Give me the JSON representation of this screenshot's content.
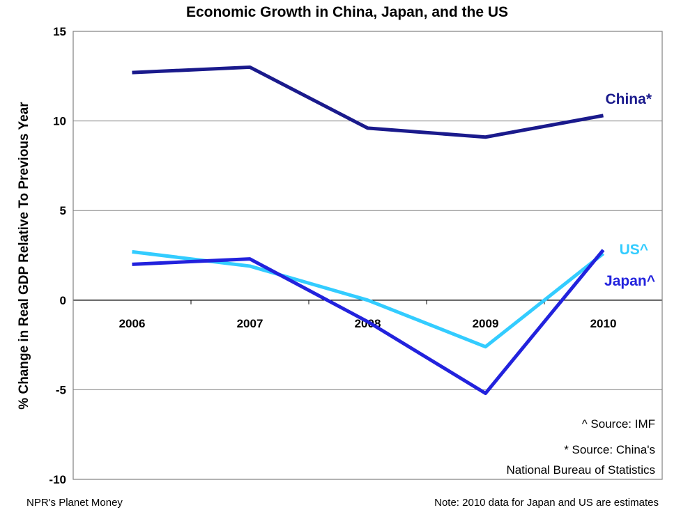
{
  "chart_data": {
    "type": "line",
    "title": "Economic Growth in China, Japan, and the US",
    "ylabel": "% Change in Real GDP Relative To Previous Year",
    "xlabel": "",
    "categories": [
      "2006",
      "2007",
      "2008",
      "2009",
      "2010"
    ],
    "ylim": [
      -10,
      15
    ],
    "yticks": [
      15,
      10,
      5,
      0,
      -5,
      -10
    ],
    "grid": true,
    "series": [
      {
        "name": "China*",
        "color": "#1a1a8c",
        "values": [
          12.7,
          13.0,
          9.6,
          9.1,
          10.3
        ]
      },
      {
        "name": "US^",
        "color": "#33ccff",
        "values": [
          2.7,
          1.9,
          0.0,
          -2.6,
          2.6
        ]
      },
      {
        "name": "Japan^",
        "color": "#2222dd",
        "values": [
          2.0,
          2.3,
          -1.2,
          -5.2,
          2.8
        ]
      }
    ],
    "annotations": [
      "^ Source: IMF",
      "* Source: China's",
      "National Bureau of Statistics"
    ]
  },
  "footer": {
    "left": "NPR's Planet Money",
    "right": "Note: 2010 data for Japan and US are estimates"
  }
}
